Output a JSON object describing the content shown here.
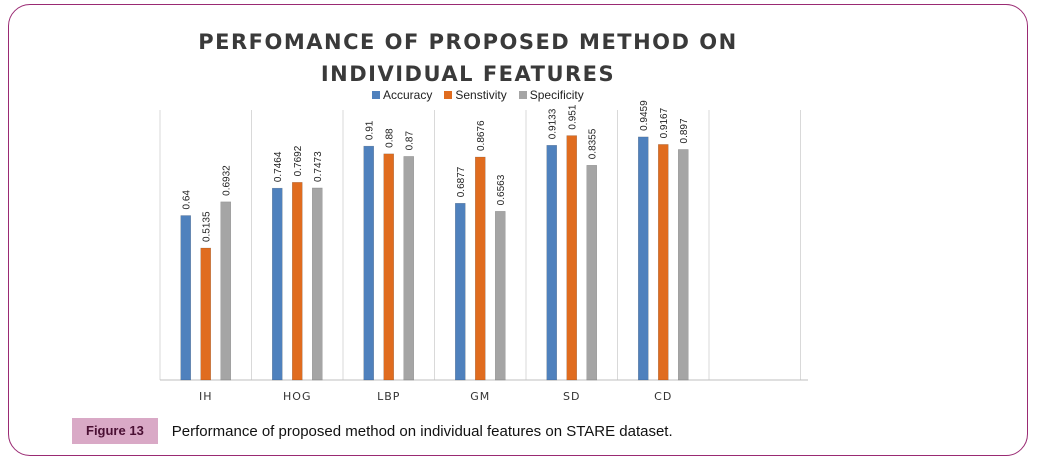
{
  "figure": {
    "label": "Figure 13",
    "caption": "Performance of proposed method on individual features on STARE dataset.",
    "border_color": "#9a2a73",
    "label_bg": "#d9a9c6"
  },
  "chart_data": {
    "type": "bar",
    "title_lines": [
      "PERFOMANCE OF PROPOSED METHOD ON",
      "INDIVIDUAL FEATURES"
    ],
    "categories": [
      "IH",
      "HOG",
      "LBP",
      "GM",
      "SD",
      "CD"
    ],
    "series": [
      {
        "name": "Accuracy",
        "color": "#4f81bd",
        "values": [
          0.64,
          0.7464,
          0.91,
          0.6877,
          0.9133,
          0.9459
        ],
        "labels": [
          "0.64",
          "0.7464",
          "0.91",
          "0.6877",
          "0.9133",
          "0.9459"
        ]
      },
      {
        "name": "Senstivity",
        "color": "#e06c1f",
        "values": [
          0.5135,
          0.7692,
          0.88,
          0.8676,
          0.951,
          0.9167
        ],
        "labels": [
          "0.5135",
          "0.7692",
          "0.88",
          "0.8676",
          "0.951",
          "0.9167"
        ]
      },
      {
        "name": "Specificity",
        "color": "#a5a5a5",
        "values": [
          0.6932,
          0.7473,
          0.87,
          0.6563,
          0.8355,
          0.897
        ],
        "labels": [
          "0.6932",
          "0.7473",
          "0.87",
          "0.6563",
          "0.8355",
          "0.897"
        ]
      }
    ],
    "xlabel": "",
    "ylabel": "",
    "ylim": [
      0,
      1
    ],
    "grid": true,
    "legend_position": "top"
  }
}
